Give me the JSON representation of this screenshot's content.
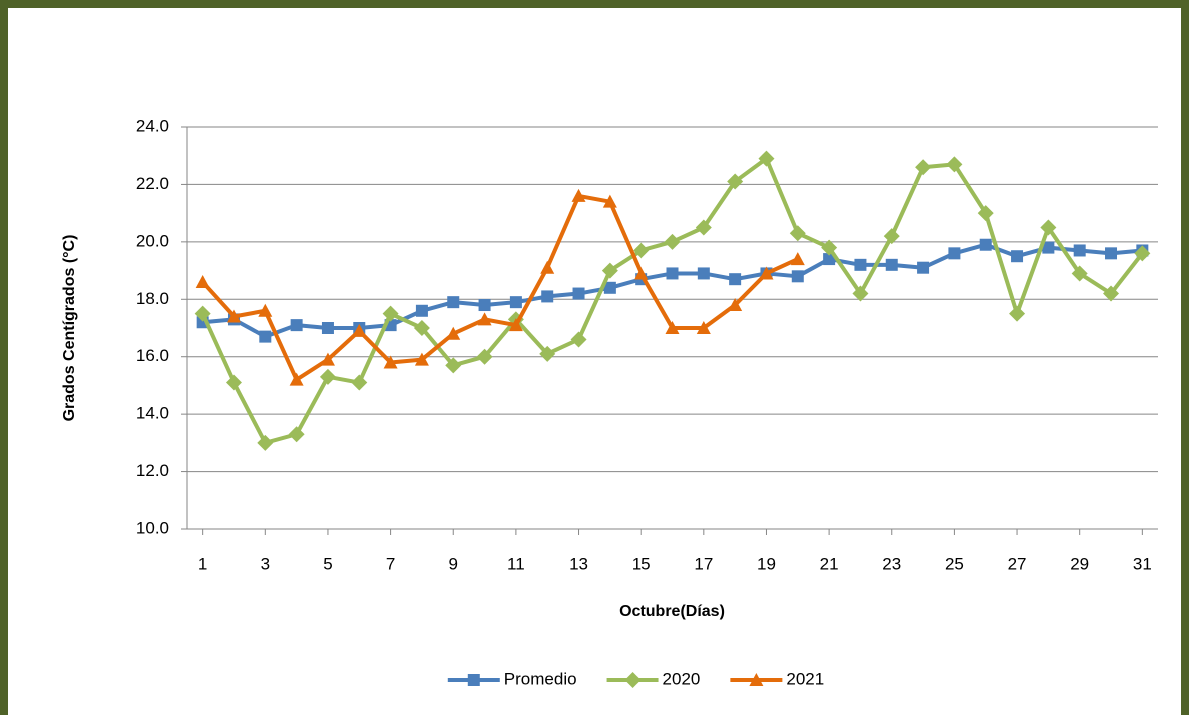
{
  "chart_data": {
    "type": "line",
    "x_label": "Octubre(Días)",
    "y_label": "Grados Centígrados (°C)",
    "x": [
      1,
      2,
      3,
      4,
      5,
      6,
      7,
      8,
      9,
      10,
      11,
      12,
      13,
      14,
      15,
      16,
      17,
      18,
      19,
      20,
      21,
      22,
      23,
      24,
      25,
      26,
      27,
      28,
      29,
      30,
      31
    ],
    "xlim": [
      0.5,
      31.5
    ],
    "xticks": [
      1,
      3,
      5,
      7,
      9,
      11,
      13,
      15,
      17,
      19,
      21,
      23,
      25,
      27,
      29,
      31
    ],
    "ylim": [
      10,
      24
    ],
    "yticks": [
      {
        "value": 10,
        "label": "10.0"
      },
      {
        "value": 12,
        "label": "12.0"
      },
      {
        "value": 14,
        "label": "14.0"
      },
      {
        "value": 16,
        "label": "16.0"
      },
      {
        "value": 18,
        "label": "18.0"
      },
      {
        "value": 20,
        "label": "20.0"
      },
      {
        "value": 22,
        "label": "22.0"
      },
      {
        "value": 24,
        "label": "24.0"
      }
    ],
    "grid": true,
    "legend": "bottom",
    "series": [
      {
        "name": "Promedio",
        "color": "#4a7ebb",
        "marker": "square",
        "values": [
          17.2,
          17.3,
          16.7,
          17.1,
          17.0,
          17.0,
          17.1,
          17.6,
          17.9,
          17.8,
          17.9,
          18.1,
          18.2,
          18.4,
          18.7,
          18.9,
          18.9,
          18.7,
          18.9,
          18.8,
          19.4,
          19.2,
          19.2,
          19.1,
          19.6,
          19.9,
          19.5,
          19.8,
          19.7,
          19.6,
          19.7
        ]
      },
      {
        "name": "2020",
        "color": "#9bbb59",
        "marker": "diamond",
        "values": [
          17.5,
          15.1,
          13.0,
          13.3,
          15.3,
          15.1,
          17.5,
          17.0,
          15.7,
          16.0,
          17.3,
          16.1,
          16.6,
          19.0,
          19.7,
          20.0,
          20.5,
          22.1,
          22.9,
          20.3,
          19.8,
          18.2,
          20.2,
          22.6,
          22.7,
          21.0,
          17.5,
          20.5,
          18.9,
          18.2,
          19.6
        ]
      },
      {
        "name": "2021",
        "color": "#e46c0a",
        "marker": "triangle",
        "values": [
          18.6,
          17.4,
          17.6,
          15.2,
          15.9,
          16.9,
          15.8,
          15.9,
          16.8,
          17.3,
          17.1,
          19.1,
          21.6,
          21.4,
          18.9,
          17.0,
          17.0,
          17.8,
          18.9,
          19.4,
          null,
          null,
          null,
          null,
          null,
          null,
          null,
          null,
          null,
          null,
          null
        ]
      }
    ]
  }
}
